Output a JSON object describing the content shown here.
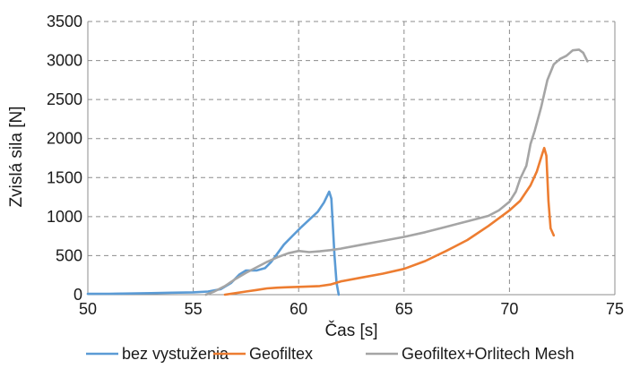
{
  "chart_data": {
    "type": "line",
    "title": "",
    "xlabel": "Čas [s]",
    "ylabel": "Zvislá sila [N]",
    "xlim": [
      50,
      75
    ],
    "ylim": [
      0,
      3500
    ],
    "x_ticks": [
      50,
      55,
      60,
      65,
      70,
      75
    ],
    "y_ticks": [
      0,
      500,
      1000,
      1500,
      2000,
      2500,
      3000,
      3500
    ],
    "grid": true,
    "legend_position": "bottom",
    "series": [
      {
        "name": "bez vystuženia",
        "color": "#5b9bd5",
        "points": [
          [
            50,
            10
          ],
          [
            51,
            12
          ],
          [
            52,
            15
          ],
          [
            53,
            20
          ],
          [
            54,
            25
          ],
          [
            55,
            30
          ],
          [
            55.7,
            40
          ],
          [
            56.3,
            70
          ],
          [
            56.8,
            150
          ],
          [
            57.2,
            260
          ],
          [
            57.5,
            310
          ],
          [
            58,
            310
          ],
          [
            58.4,
            340
          ],
          [
            58.7,
            420
          ],
          [
            59,
            530
          ],
          [
            59.3,
            640
          ],
          [
            59.7,
            750
          ],
          [
            60.1,
            860
          ],
          [
            60.5,
            960
          ],
          [
            60.9,
            1060
          ],
          [
            61.2,
            1180
          ],
          [
            61.45,
            1320
          ],
          [
            61.55,
            1230
          ],
          [
            61.7,
            500
          ],
          [
            61.8,
            150
          ],
          [
            61.9,
            0
          ]
        ]
      },
      {
        "name": "Geofiltex",
        "color": "#ed7d31",
        "points": [
          [
            56.5,
            0
          ],
          [
            57,
            20
          ],
          [
            57.5,
            40
          ],
          [
            58,
            60
          ],
          [
            58.5,
            80
          ],
          [
            59,
            90
          ],
          [
            59.5,
            95
          ],
          [
            60,
            100
          ],
          [
            61,
            110
          ],
          [
            61.5,
            130
          ],
          [
            62,
            170
          ],
          [
            63,
            220
          ],
          [
            64,
            270
          ],
          [
            65,
            330
          ],
          [
            66,
            430
          ],
          [
            67,
            560
          ],
          [
            68,
            700
          ],
          [
            69,
            880
          ],
          [
            70,
            1080
          ],
          [
            70.5,
            1200
          ],
          [
            71,
            1400
          ],
          [
            71.3,
            1580
          ],
          [
            71.55,
            1800
          ],
          [
            71.65,
            1880
          ],
          [
            71.75,
            1780
          ],
          [
            71.85,
            1200
          ],
          [
            71.95,
            850
          ],
          [
            72.1,
            760
          ]
        ]
      },
      {
        "name": "Geofiltex+Orlitech Mesh",
        "color": "#a5a5a5",
        "points": [
          [
            55.6,
            0
          ],
          [
            56,
            40
          ],
          [
            56.5,
            110
          ],
          [
            57,
            200
          ],
          [
            57.5,
            280
          ],
          [
            58,
            350
          ],
          [
            58.5,
            420
          ],
          [
            59,
            480
          ],
          [
            59.5,
            530
          ],
          [
            60,
            560
          ],
          [
            60.5,
            545
          ],
          [
            61,
            555
          ],
          [
            61.5,
            570
          ],
          [
            62,
            590
          ],
          [
            63,
            640
          ],
          [
            64,
            690
          ],
          [
            65,
            740
          ],
          [
            66,
            800
          ],
          [
            67,
            870
          ],
          [
            68,
            940
          ],
          [
            69,
            1010
          ],
          [
            69.5,
            1080
          ],
          [
            70,
            1190
          ],
          [
            70.3,
            1320
          ],
          [
            70.5,
            1480
          ],
          [
            70.8,
            1650
          ],
          [
            71,
            1930
          ],
          [
            71.2,
            2100
          ],
          [
            71.5,
            2400
          ],
          [
            71.8,
            2750
          ],
          [
            72.1,
            2950
          ],
          [
            72.4,
            3020
          ],
          [
            72.7,
            3060
          ],
          [
            73,
            3130
          ],
          [
            73.3,
            3140
          ],
          [
            73.5,
            3100
          ],
          [
            73.7,
            2990
          ]
        ]
      }
    ]
  }
}
